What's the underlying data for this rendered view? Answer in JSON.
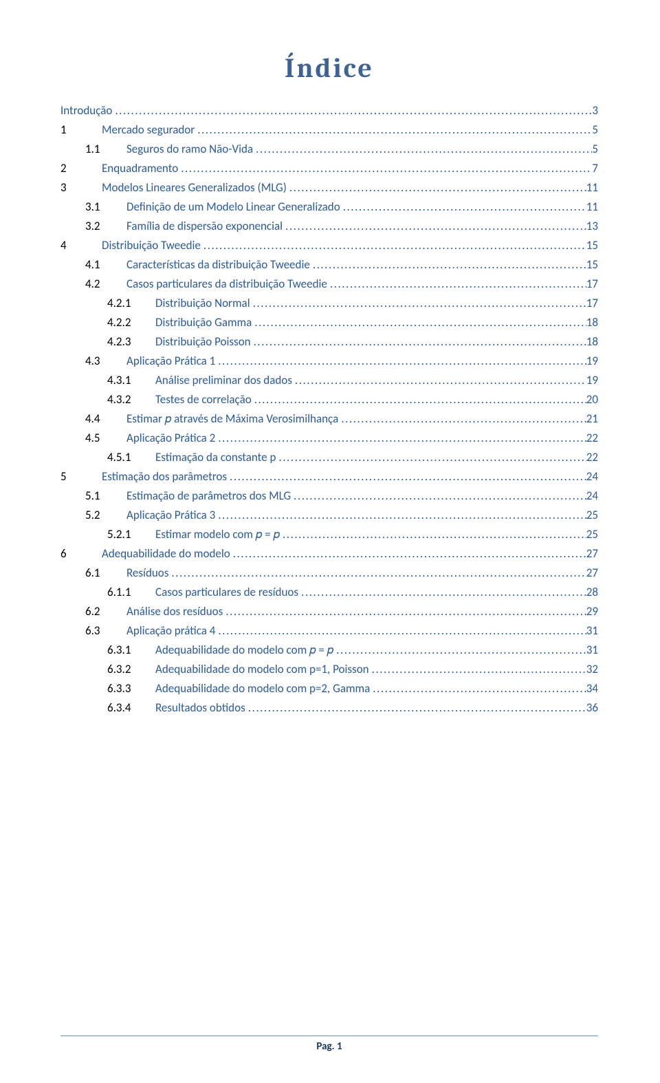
{
  "title": {
    "text": "Índice",
    "color": "#3f6294",
    "fontsize": 40
  },
  "typography": {
    "body_fontsize": 17,
    "body_color": "#000000",
    "link_color": "#2b5b9b",
    "row_margin_bottom": 11
  },
  "indent": {
    "level0_pad": 0,
    "level1_num_w": 36,
    "level1_label_pad": 24,
    "level2_pad": 36,
    "level2_num_w": 40,
    "level2_label_pad": 20,
    "level3_pad": 68,
    "level3_num_w": 56,
    "level3_label_pad": 14
  },
  "toc": [
    {
      "level": 0,
      "num": "",
      "label": "Introdução",
      "page": "3"
    },
    {
      "level": 1,
      "num": "1",
      "label": "Mercado segurador",
      "page": "5"
    },
    {
      "level": 2,
      "num": "1.1",
      "label": "Seguros do ramo Não-Vida",
      "page": "5"
    },
    {
      "level": 1,
      "num": "2",
      "label": "Enquadramento",
      "page": "7"
    },
    {
      "level": 1,
      "num": "3",
      "label": "Modelos Lineares Generalizados (MLG)",
      "page": "11"
    },
    {
      "level": 2,
      "num": "3.1",
      "label": "Definição de um Modelo Linear Generalizado",
      "page": "11"
    },
    {
      "level": 2,
      "num": "3.2",
      "label": "Família de dispersão exponencial",
      "page": "13"
    },
    {
      "level": 1,
      "num": "4",
      "label": "Distribuição Tweedie",
      "page": "15"
    },
    {
      "level": 2,
      "num": "4.1",
      "label": "Características da distribuição Tweedie",
      "page": "15"
    },
    {
      "level": 2,
      "num": "4.2",
      "label": "Casos particulares da distribuição Tweedie",
      "page": "17"
    },
    {
      "level": 3,
      "num": "4.2.1",
      "label": "Distribuição Normal",
      "page": "17"
    },
    {
      "level": 3,
      "num": "4.2.2",
      "label": "Distribuição Gamma",
      "page": "18"
    },
    {
      "level": 3,
      "num": "4.2.3",
      "label": "Distribuição Poisson",
      "page": "18"
    },
    {
      "level": 2,
      "num": "4.3",
      "label": "Aplicação Prática 1",
      "page": "19"
    },
    {
      "level": 3,
      "num": "4.3.1",
      "label": "Análise preliminar dos dados",
      "page": "19"
    },
    {
      "level": 3,
      "num": "4.3.2",
      "label": "Testes de correlação",
      "page": "20"
    },
    {
      "level": 2,
      "num": "4.4",
      "label": "Estimar 𝑝 através de Máxima Verosimilhança",
      "page": "21"
    },
    {
      "level": 2,
      "num": "4.5",
      "label": "Aplicação Prática 2",
      "page": "22"
    },
    {
      "level": 3,
      "num": "4.5.1",
      "label": "Estimação da constante p",
      "page": "22"
    },
    {
      "level": 1,
      "num": "5",
      "label": "Estimação dos parâmetros",
      "page": "24"
    },
    {
      "level": 2,
      "num": "5.1",
      "label": "Estimação de parâmetros dos MLG",
      "page": "24"
    },
    {
      "level": 2,
      "num": "5.2",
      "label": "Aplicação Prática 3",
      "page": "25"
    },
    {
      "level": 3,
      "num": "5.2.1",
      "label": "Estimar modelo com 𝑝 = 𝑝",
      "page": "25"
    },
    {
      "level": 1,
      "num": "6",
      "label": "Adequabilidade do modelo",
      "page": "27"
    },
    {
      "level": 2,
      "num": "6.1",
      "label": "Resíduos",
      "page": "27"
    },
    {
      "level": 3,
      "num": "6.1.1",
      "label": "Casos particulares de resíduos",
      "page": "28"
    },
    {
      "level": 2,
      "num": "6.2",
      "label": "Análise dos resíduos",
      "page": "29"
    },
    {
      "level": 2,
      "num": "6.3",
      "label": "Aplicação prática 4",
      "page": "31"
    },
    {
      "level": 3,
      "num": "6.3.1",
      "label": "Adequabilidade do modelo com 𝑝 = 𝑝",
      "page": "31"
    },
    {
      "level": 3,
      "num": "6.3.2",
      "label": "Adequabilidade do modelo com p=1, Poisson",
      "page": "32"
    },
    {
      "level": 3,
      "num": "6.3.3",
      "label": "Adequabilidade do modelo com p=2, Gamma",
      "page": "34"
    },
    {
      "level": 3,
      "num": "6.3.4",
      "label": "Resultados obtidos",
      "page": "36"
    }
  ],
  "footer": {
    "line_color": "#6591be",
    "text": "Pag. 1",
    "text_color": "#18375f",
    "fontsize": 15
  }
}
